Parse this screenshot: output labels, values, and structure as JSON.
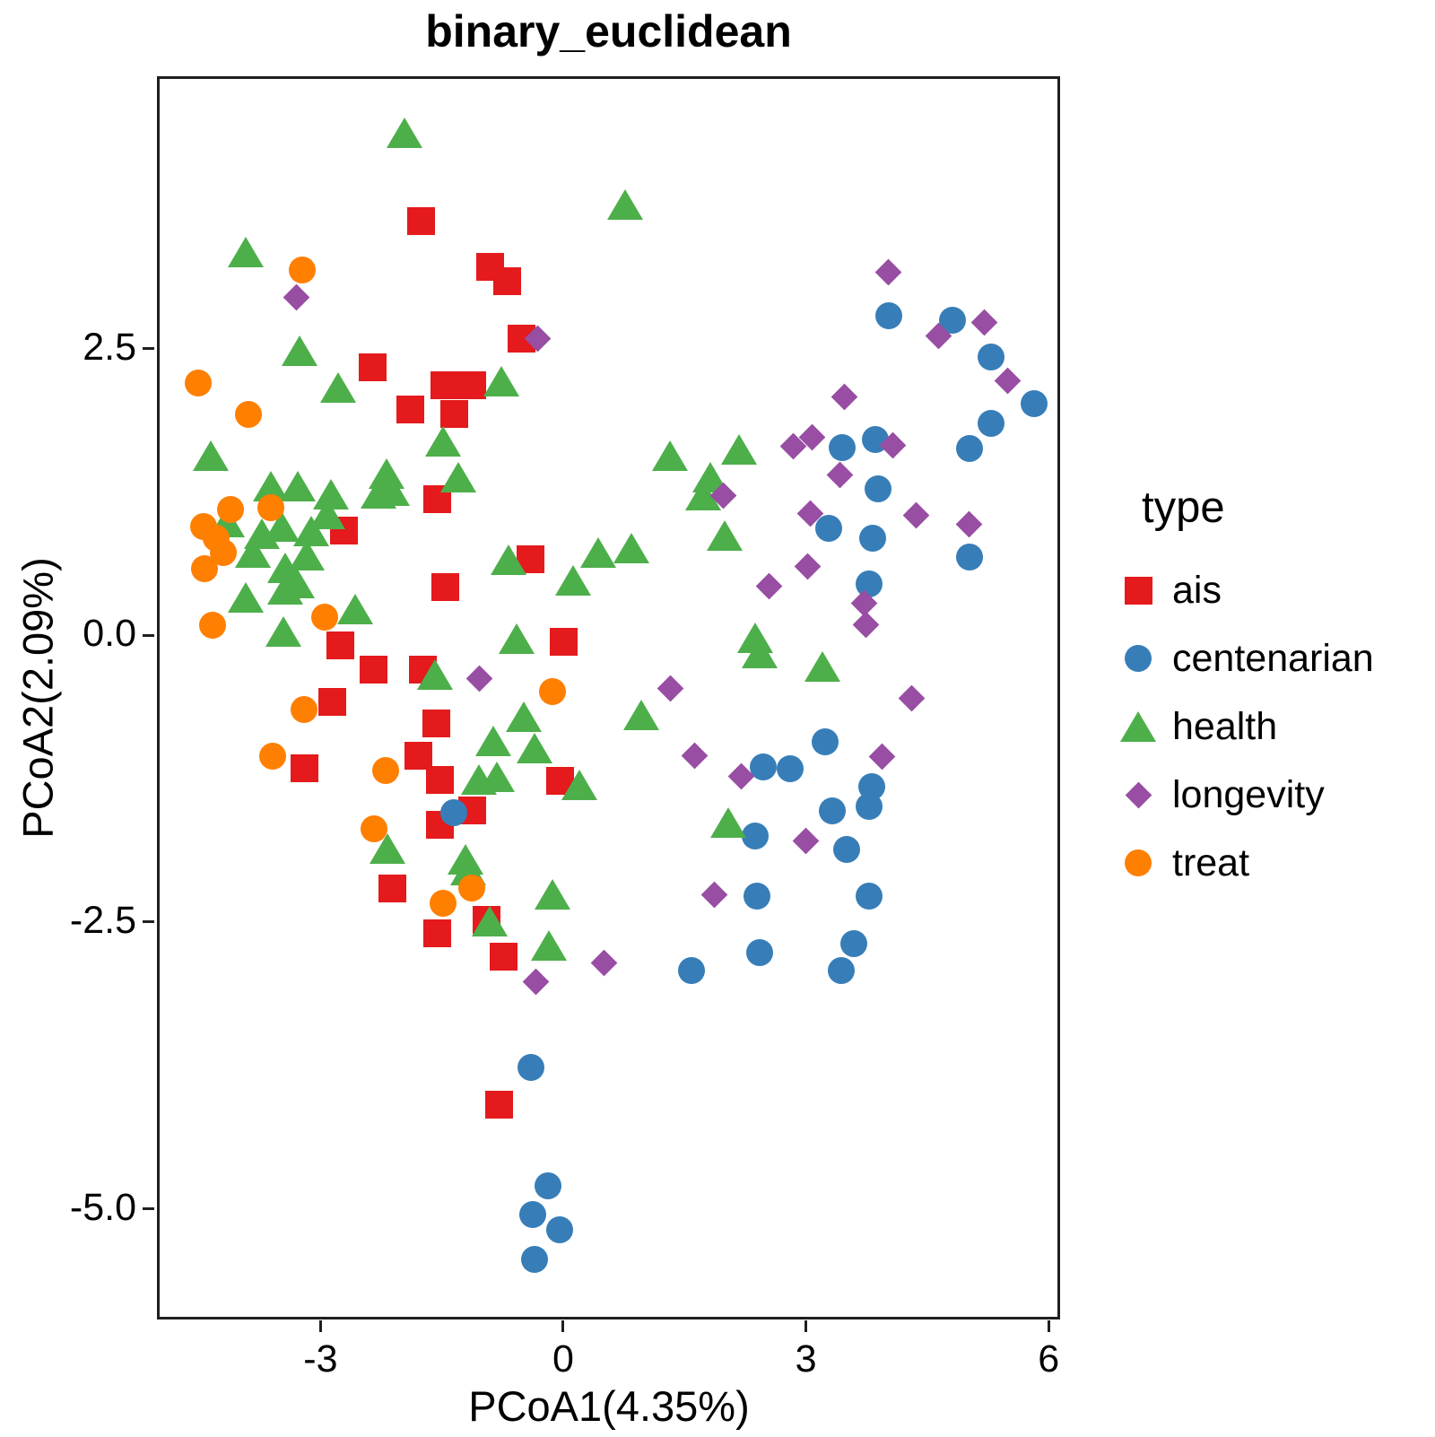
{
  "title": "binary_euclidean",
  "chart_data": {
    "type": "scatter",
    "title": "binary_euclidean",
    "xlabel": "PCoA1(4.35%)",
    "ylabel": "PCoA2(2.09%)",
    "xlim": [
      -5.0,
      6.12
    ],
    "ylim": [
      -5.95,
      4.86
    ],
    "x_ticks": [
      -3,
      0,
      3,
      6
    ],
    "x_tick_labels": [
      "-3",
      "0",
      "3",
      "6"
    ],
    "y_ticks": [
      2.5,
      0.0,
      -2.5,
      -5.0
    ],
    "y_tick_labels": [
      "2.5",
      "0.0",
      "-2.5",
      "-5.0"
    ],
    "grid": false,
    "legend_title": "type",
    "legend_position": "right",
    "series": [
      {
        "name": "ais",
        "marker": "square",
        "color": "#e41a1c",
        "points": [
          [
            -1.76,
            3.61
          ],
          [
            -0.9,
            3.21
          ],
          [
            -0.69,
            3.09
          ],
          [
            -0.52,
            2.59
          ],
          [
            -2.36,
            2.34
          ],
          [
            -1.89,
            1.97
          ],
          [
            -1.47,
            2.18
          ],
          [
            -1.13,
            2.18
          ],
          [
            -1.35,
            1.93
          ],
          [
            -1.56,
            1.19
          ],
          [
            -2.71,
            0.91
          ],
          [
            -1.46,
            0.42
          ],
          [
            -0.4,
            0.66
          ],
          [
            -2.76,
            -0.09
          ],
          [
            0.01,
            -0.06
          ],
          [
            -2.85,
            -0.58
          ],
          [
            -2.35,
            -0.3
          ],
          [
            -1.74,
            -0.3
          ],
          [
            -1.57,
            -0.77
          ],
          [
            -1.79,
            -1.05
          ],
          [
            -3.2,
            -1.16
          ],
          [
            -1.52,
            -1.26
          ],
          [
            -0.04,
            -1.27
          ],
          [
            -1.52,
            -1.65
          ],
          [
            -1.12,
            -1.53
          ],
          [
            -2.11,
            -2.21
          ],
          [
            -0.95,
            -2.48
          ],
          [
            -1.56,
            -2.6
          ],
          [
            -0.74,
            -2.8
          ],
          [
            -0.79,
            -4.09
          ]
        ]
      },
      {
        "name": "centenarian",
        "marker": "circle",
        "color": "#377eb8",
        "points": [
          [
            4.03,
            2.79
          ],
          [
            4.81,
            2.75
          ],
          [
            5.29,
            2.43
          ],
          [
            5.82,
            2.02
          ],
          [
            5.29,
            1.85
          ],
          [
            5.02,
            1.63
          ],
          [
            3.45,
            1.64
          ],
          [
            3.86,
            1.71
          ],
          [
            3.89,
            1.28
          ],
          [
            3.28,
            0.93
          ],
          [
            3.83,
            0.85
          ],
          [
            5.02,
            0.68
          ],
          [
            3.78,
            0.45
          ],
          [
            2.8,
            -1.16
          ],
          [
            3.24,
            -0.93
          ],
          [
            3.81,
            -1.32
          ],
          [
            3.78,
            -1.49
          ],
          [
            3.33,
            -1.53
          ],
          [
            3.5,
            -1.87
          ],
          [
            2.47,
            -1.15
          ],
          [
            2.37,
            -1.75
          ],
          [
            2.39,
            -2.27
          ],
          [
            3.78,
            -2.27
          ],
          [
            2.43,
            -2.77
          ],
          [
            3.59,
            -2.69
          ],
          [
            3.44,
            -2.92
          ],
          [
            1.58,
            -2.92
          ],
          [
            -1.35,
            -1.55
          ],
          [
            -0.4,
            -3.77
          ],
          [
            -0.19,
            -4.8
          ],
          [
            -0.38,
            -5.05
          ],
          [
            -0.04,
            -5.18
          ],
          [
            -0.35,
            -5.44
          ]
        ]
      },
      {
        "name": "health",
        "marker": "triangle",
        "color": "#4daf4a",
        "points": [
          [
            -1.96,
            4.38
          ],
          [
            0.76,
            3.76
          ],
          [
            -3.93,
            3.34
          ],
          [
            -3.26,
            2.48
          ],
          [
            -2.78,
            2.16
          ],
          [
            -0.76,
            2.22
          ],
          [
            -4.36,
            1.57
          ],
          [
            -1.48,
            1.69
          ],
          [
            -3.61,
            1.3
          ],
          [
            -3.28,
            1.3
          ],
          [
            -2.18,
            1.41
          ],
          [
            -1.3,
            1.38
          ],
          [
            -2.28,
            1.24
          ],
          [
            -2.12,
            1.26
          ],
          [
            -2.87,
            1.23
          ],
          [
            -2.92,
            1.06
          ],
          [
            -4.16,
            0.99
          ],
          [
            -3.72,
            0.89
          ],
          [
            -3.48,
            0.95
          ],
          [
            -3.11,
            0.91
          ],
          [
            -3.84,
            0.72
          ],
          [
            -3.44,
            0.59
          ],
          [
            -3.17,
            0.7
          ],
          [
            -3.92,
            0.33
          ],
          [
            -3.44,
            0.4
          ],
          [
            -3.29,
            0.46
          ],
          [
            -3.46,
            0.03
          ],
          [
            -2.57,
            0.23
          ],
          [
            -0.68,
            0.66
          ],
          [
            0.43,
            0.72
          ],
          [
            0.84,
            0.76
          ],
          [
            0.12,
            0.48
          ],
          [
            1.73,
            1.22
          ],
          [
            2.0,
            0.87
          ],
          [
            1.32,
            1.57
          ],
          [
            2.17,
            1.62
          ],
          [
            1.82,
            1.38
          ],
          [
            -0.58,
            -0.03
          ],
          [
            2.37,
            -0.02
          ],
          [
            2.43,
            -0.15
          ],
          [
            3.2,
            -0.27
          ],
          [
            -1.59,
            -0.34
          ],
          [
            0.97,
            -0.69
          ],
          [
            -0.49,
            -0.71
          ],
          [
            -0.87,
            -0.92
          ],
          [
            -0.35,
            -0.98
          ],
          [
            -1.04,
            -1.26
          ],
          [
            -0.82,
            -1.23
          ],
          [
            0.2,
            -1.3
          ],
          [
            -2.17,
            -1.86
          ],
          [
            -1.21,
            -1.95
          ],
          [
            2.04,
            -1.63
          ],
          [
            -1.18,
            -2.05
          ],
          [
            -0.91,
            -2.49
          ],
          [
            -0.13,
            -2.26
          ],
          [
            -0.18,
            -2.7
          ]
        ]
      },
      {
        "name": "longevity",
        "marker": "diamond",
        "color": "#984ea3",
        "points": [
          [
            -3.3,
            2.95
          ],
          [
            -0.32,
            2.59
          ],
          [
            4.02,
            3.17
          ],
          [
            4.64,
            2.61
          ],
          [
            5.2,
            2.73
          ],
          [
            5.49,
            2.22
          ],
          [
            3.48,
            2.08
          ],
          [
            2.84,
            1.65
          ],
          [
            3.08,
            1.73
          ],
          [
            4.08,
            1.66
          ],
          [
            3.42,
            1.4
          ],
          [
            1.98,
            1.22
          ],
          [
            3.06,
            1.06
          ],
          [
            4.36,
            1.05
          ],
          [
            5.02,
            0.97
          ],
          [
            3.02,
            0.6
          ],
          [
            2.54,
            0.43
          ],
          [
            3.72,
            0.28
          ],
          [
            3.74,
            0.09
          ],
          [
            -1.04,
            -0.38
          ],
          [
            1.32,
            -0.46
          ],
          [
            1.62,
            -1.05
          ],
          [
            2.2,
            -1.23
          ],
          [
            4.31,
            -0.55
          ],
          [
            3.94,
            -1.06
          ],
          [
            3.0,
            -1.79
          ],
          [
            1.87,
            -2.26
          ],
          [
            0.51,
            -2.86
          ],
          [
            -0.34,
            -3.02
          ]
        ]
      },
      {
        "name": "treat",
        "marker": "circle",
        "color": "#ff7f00",
        "points": [
          [
            -3.23,
            3.19
          ],
          [
            -4.51,
            2.2
          ],
          [
            -3.89,
            1.93
          ],
          [
            -4.11,
            1.1
          ],
          [
            -3.61,
            1.11
          ],
          [
            -4.45,
            0.95
          ],
          [
            -4.29,
            0.85
          ],
          [
            -4.2,
            0.72
          ],
          [
            -4.44,
            0.58
          ],
          [
            -4.34,
            0.09
          ],
          [
            -2.95,
            0.16
          ],
          [
            -3.2,
            -0.65
          ],
          [
            -3.59,
            -1.05
          ],
          [
            -2.2,
            -1.18
          ],
          [
            -2.34,
            -1.69
          ],
          [
            -1.13,
            -2.2
          ],
          [
            -1.48,
            -2.34
          ],
          [
            -0.13,
            -0.49
          ]
        ]
      }
    ]
  }
}
